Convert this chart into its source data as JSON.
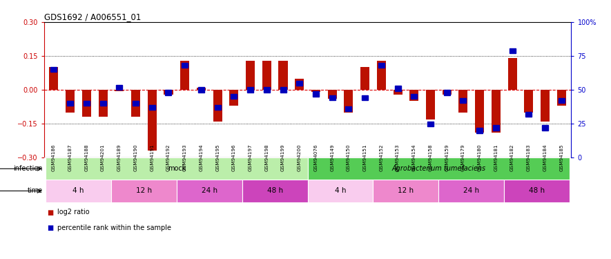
{
  "title": "GDS1692 / A006551_01",
  "samples": [
    "GSM94186",
    "GSM94187",
    "GSM94188",
    "GSM94201",
    "GSM94189",
    "GSM94190",
    "GSM94191",
    "GSM94192",
    "GSM94193",
    "GSM94194",
    "GSM94195",
    "GSM94196",
    "GSM94197",
    "GSM94198",
    "GSM94199",
    "GSM94200",
    "GSM94076",
    "GSM94149",
    "GSM94150",
    "GSM94151",
    "GSM94152",
    "GSM94153",
    "GSM94154",
    "GSM94158",
    "GSM94159",
    "GSM94179",
    "GSM94180",
    "GSM94181",
    "GSM94182",
    "GSM94183",
    "GSM94184",
    "GSM94185"
  ],
  "log2_ratio": [
    0.1,
    -0.1,
    -0.12,
    -0.12,
    -0.005,
    -0.12,
    -0.27,
    -0.02,
    0.13,
    0.01,
    -0.14,
    -0.07,
    0.13,
    0.13,
    0.13,
    0.05,
    -0.01,
    -0.04,
    -0.1,
    0.1,
    0.13,
    -0.02,
    -0.05,
    -0.13,
    -0.02,
    -0.1,
    -0.19,
    -0.19,
    0.14,
    -0.1,
    -0.14,
    -0.07
  ],
  "percentile_rank": [
    65,
    40,
    40,
    40,
    52,
    40,
    37,
    48,
    68,
    50,
    37,
    45,
    50,
    50,
    50,
    55,
    47,
    44,
    36,
    44,
    68,
    51,
    45,
    25,
    48,
    42,
    20,
    22,
    79,
    32,
    22,
    42
  ],
  "ylim": [
    -0.3,
    0.3
  ],
  "yticks_left": [
    -0.3,
    -0.15,
    0.0,
    0.15,
    0.3
  ],
  "yticks_right": [
    0,
    25,
    50,
    75,
    100
  ],
  "bar_color": "#bb1100",
  "dot_color": "#0000bb",
  "zero_line_color": "#dd0000",
  "infection_groups": [
    {
      "label": "mock",
      "start": 0,
      "end": 16,
      "color": "#bbeeaa"
    },
    {
      "label": "Agrobacterium tumefaciens",
      "start": 16,
      "end": 32,
      "color": "#55cc55"
    }
  ],
  "time_groups": [
    {
      "label": "4 h",
      "start": 0,
      "end": 4,
      "color": "#f9ccee"
    },
    {
      "label": "12 h",
      "start": 4,
      "end": 8,
      "color": "#ee88cc"
    },
    {
      "label": "24 h",
      "start": 8,
      "end": 12,
      "color": "#dd66cc"
    },
    {
      "label": "48 h",
      "start": 12,
      "end": 16,
      "color": "#cc44bb"
    },
    {
      "label": "4 h",
      "start": 16,
      "end": 20,
      "color": "#f9ccee"
    },
    {
      "label": "12 h",
      "start": 20,
      "end": 24,
      "color": "#ee88cc"
    },
    {
      "label": "24 h",
      "start": 24,
      "end": 28,
      "color": "#dd66cc"
    },
    {
      "label": "48 h",
      "start": 28,
      "end": 32,
      "color": "#cc44bb"
    }
  ],
  "bg_color": "#ffffff",
  "legend_items": [
    {
      "label": "log2 ratio",
      "color": "#bb1100"
    },
    {
      "label": "percentile rank within the sample",
      "color": "#0000bb"
    }
  ]
}
